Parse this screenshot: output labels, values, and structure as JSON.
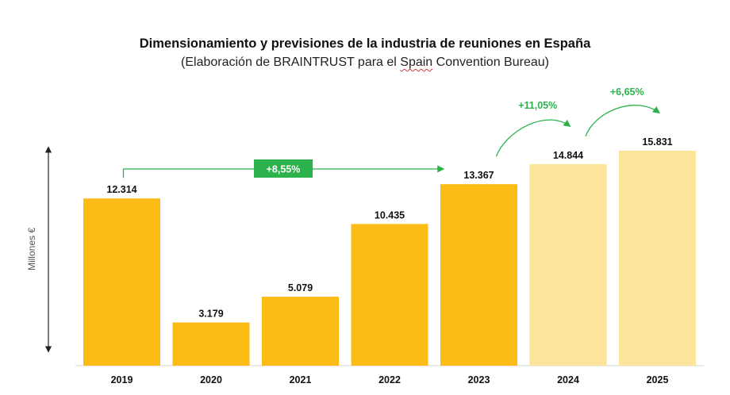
{
  "chart_data": {
    "type": "bar",
    "title": "Dimensionamiento y previsiones de la industria de reuniones en España",
    "subtitle_prefix": "(Elaboración de BRAINTRUST para el ",
    "subtitle_underlined": "Spain",
    "subtitle_suffix": " Convention Bureau)",
    "ylabel": "Millones €",
    "xlabel": "",
    "ylim": [
      0,
      17000
    ],
    "categories": [
      "2019",
      "2020",
      "2021",
      "2022",
      "2023",
      "2024",
      "2025"
    ],
    "values": [
      12314,
      3179,
      5079,
      10435,
      13367,
      14844,
      15831
    ],
    "value_labels": [
      "12.314",
      "3.179",
      "5.079",
      "10.435",
      "13.367",
      "14.844",
      "15.831"
    ],
    "forecast": [
      false,
      false,
      false,
      false,
      false,
      true,
      true
    ],
    "colors": {
      "actual": "#FDBC15",
      "forecast": "#FCE49A",
      "growth": "#2BB24C"
    },
    "annotations": [
      {
        "from": "2019",
        "to": "2023",
        "text": "+8,55%",
        "style": "badge"
      },
      {
        "from": "2023",
        "to": "2024",
        "text": "+11,05%",
        "style": "curved-arrow"
      },
      {
        "from": "2024",
        "to": "2025",
        "text": "+6,65%",
        "style": "curved-arrow"
      }
    ]
  }
}
